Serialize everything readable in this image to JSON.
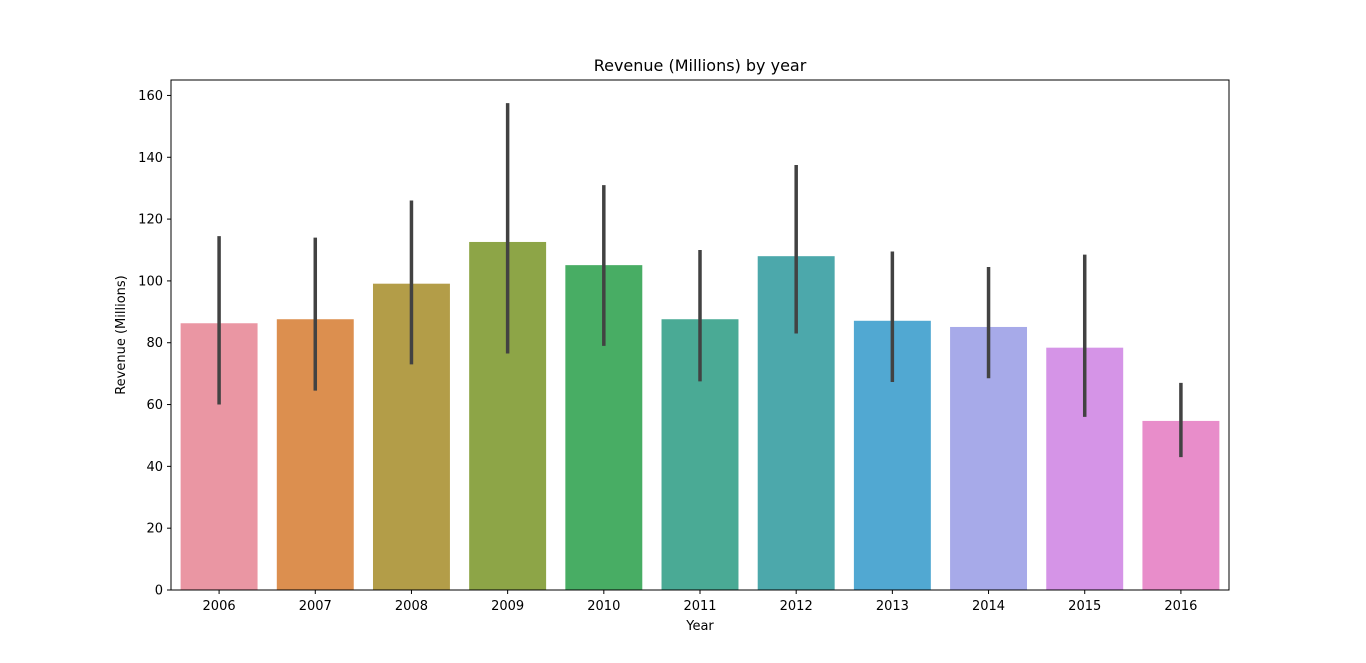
{
  "chart_data": {
    "type": "bar",
    "title": "Revenue (Millions) by year",
    "xlabel": "Year",
    "ylabel": "Revenue (Millions)",
    "categories": [
      "2006",
      "2007",
      "2008",
      "2009",
      "2010",
      "2011",
      "2012",
      "2013",
      "2014",
      "2015",
      "2016"
    ],
    "values": [
      86.3,
      87.6,
      99.1,
      112.6,
      105.1,
      87.6,
      108.0,
      87.1,
      85.1,
      78.4,
      54.7
    ],
    "error_low": [
      60.0,
      64.5,
      73.0,
      76.5,
      79.0,
      67.5,
      83.0,
      67.3,
      68.5,
      56.0,
      43.0
    ],
    "error_high": [
      114.5,
      114.0,
      126.0,
      157.5,
      131.0,
      110.0,
      137.5,
      109.5,
      104.5,
      108.5,
      67.0
    ],
    "colors": [
      "#ea96a3",
      "#dc8f4f",
      "#b39d48",
      "#8da547",
      "#48ad64",
      "#4aaa95",
      "#4ca8ab",
      "#51a8d2",
      "#a7aae9",
      "#d594e7",
      "#e88dca"
    ],
    "error_color": "#424242",
    "ylim": [
      0,
      165
    ],
    "yticks": [
      0,
      20,
      40,
      60,
      80,
      100,
      120,
      140,
      160
    ],
    "grid": false,
    "legend": "none"
  }
}
